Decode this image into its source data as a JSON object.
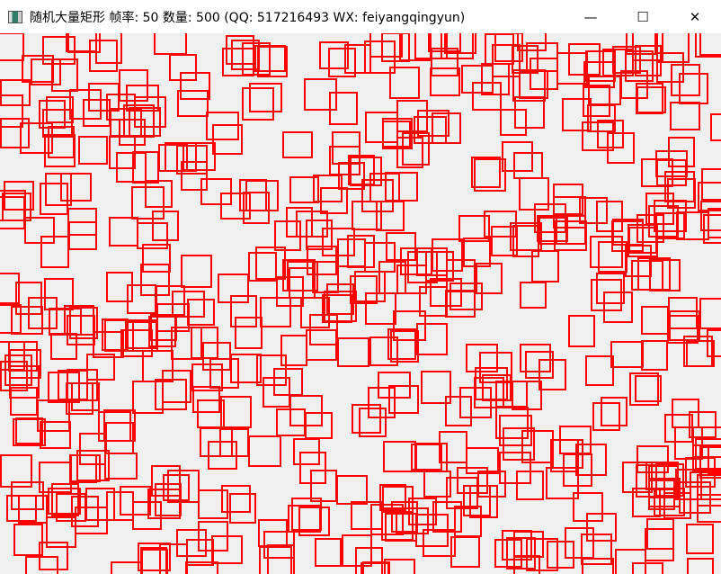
{
  "window": {
    "title": "随机大量矩形  帧率: 50  数量: 500 (QQ: 517216493 WX: feiyangqingyun)",
    "icon": "app-icon",
    "controls": {
      "minimize": "—",
      "maximize": "☐",
      "close": "✕"
    }
  },
  "canvas": {
    "background": "#f0f0f0",
    "rect_color": "#ff0000",
    "rect_count": 500,
    "frame_rate": 50
  }
}
